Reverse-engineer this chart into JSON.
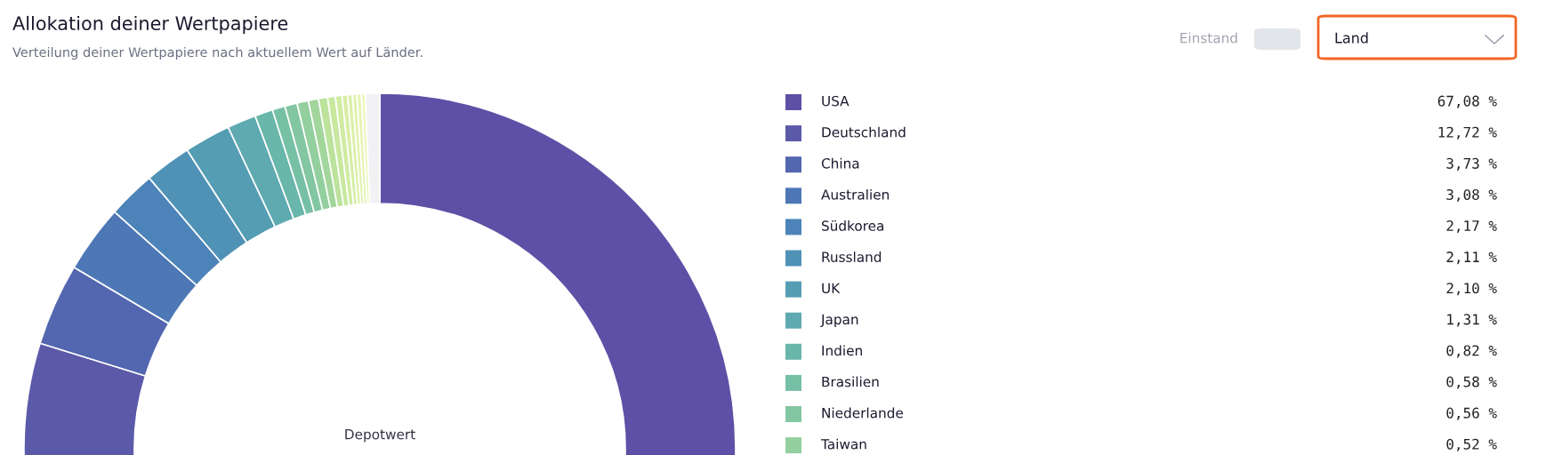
{
  "chart_data": {
    "type": "donut",
    "title": "Allokation deiner Wertpapiere",
    "subtitle": "Verteilung deiner Wertpapiere nach aktuellem Wert auf Länder.",
    "annotations": [
      "Einstand",
      "Land",
      "Depotwert"
    ],
    "categories": [
      "USA",
      "Deutschland",
      "China",
      "Australien",
      "Südkorea",
      "Russland",
      "UK",
      "Japan",
      "Indien",
      "Brasilien",
      "Niederlande",
      "Taiwan",
      null,
      null,
      null,
      null,
      null,
      null,
      null,
      null,
      null,
      null
    ],
    "values": [
      67.08,
      12.72,
      3.73,
      3.08,
      2.17,
      2.11,
      2.1,
      1.31,
      0.82,
      0.58,
      0.56,
      0.52,
      0.46,
      0.41,
      0.35,
      0.3,
      0.25,
      0.22,
      0.2,
      0.2,
      0.18,
      0.65
    ],
    "value_labels": [
      "67,08 %",
      "12,72 %",
      "3,73 %",
      "3,08 %",
      "2,17 %",
      "2,11 %",
      "2,10 %",
      "1,31 %",
      "0,82 %",
      "0,58 %",
      "0,56 %",
      "0,52 %",
      null,
      null,
      null,
      null,
      null,
      null,
      null,
      null,
      null,
      null
    ],
    "colors": [
      "#5e50a6",
      "#5b5aa9",
      "#5366b0",
      "#4e78b5",
      "#4c83b8",
      "#5092b6",
      "#559db3",
      "#5eaab0",
      "#69b6aa",
      "#76c0a6",
      "#83c6a2",
      "#93cf9f",
      "#a3d69c",
      "#bce29c",
      "#c8e8a0",
      "#d0eba2",
      "#d6eea5",
      "#dbf0a8",
      "#e0f2ac",
      "#e6f4b3",
      "#ecf6bd",
      "#f2f2f5"
    ],
    "legend": "right"
  }
}
